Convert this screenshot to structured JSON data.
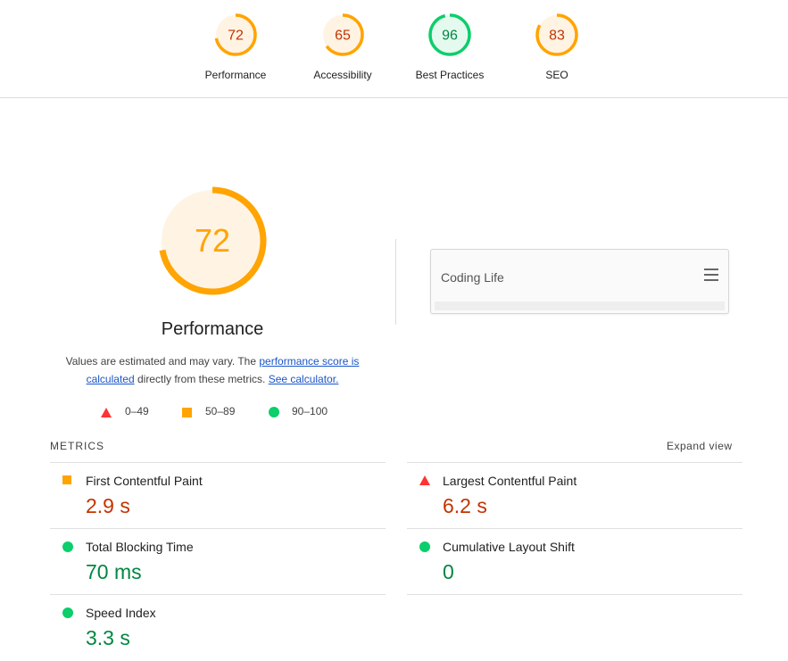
{
  "colors": {
    "fail": "#ff3333",
    "average": "#ffa400",
    "pass": "#0cce6b",
    "average_text": "#c33300",
    "pass_text": "#018642",
    "fail_text": "#c33300",
    "average_bg": "#fff3e3",
    "pass_bg": "#e5faef"
  },
  "top_gauges": [
    {
      "label": "Performance",
      "score": "72",
      "fraction": 0.72,
      "rating": "average"
    },
    {
      "label": "Accessibility",
      "score": "65",
      "fraction": 0.65,
      "rating": "average"
    },
    {
      "label": "Best Practices",
      "score": "96",
      "fraction": 0.96,
      "rating": "pass"
    },
    {
      "label": "SEO",
      "score": "83",
      "fraction": 0.83,
      "rating": "average"
    }
  ],
  "main": {
    "score": "72",
    "fraction": 0.72,
    "title": "Performance",
    "desc_prefix": "Values are estimated and may vary. The ",
    "desc_link1": "performance score is calculated",
    "desc_middle": " directly from these metrics. ",
    "desc_link2": "See calculator."
  },
  "legend": [
    {
      "shape": "triangle-icon",
      "label": "0–49"
    },
    {
      "shape": "square-icon",
      "label": "50–89"
    },
    {
      "shape": "circle-icon",
      "label": "90–100"
    }
  ],
  "preview": {
    "site_title": "Coding Life",
    "menu_icon": "hamburger-icon"
  },
  "metrics": {
    "header": "METRICS",
    "expand_label": "Expand view",
    "items": [
      {
        "name": "First Contentful Paint",
        "value": "2.9 s",
        "rating": "average",
        "icon": "square-icon"
      },
      {
        "name": "Largest Contentful Paint",
        "value": "6.2 s",
        "rating": "fail",
        "icon": "triangle-icon"
      },
      {
        "name": "Total Blocking Time",
        "value": "70 ms",
        "rating": "pass",
        "icon": "circle-icon"
      },
      {
        "name": "Cumulative Layout Shift",
        "value": "0",
        "rating": "pass",
        "icon": "circle-icon"
      },
      {
        "name": "Speed Index",
        "value": "3.3 s",
        "rating": "pass",
        "icon": "circle-icon"
      }
    ]
  }
}
